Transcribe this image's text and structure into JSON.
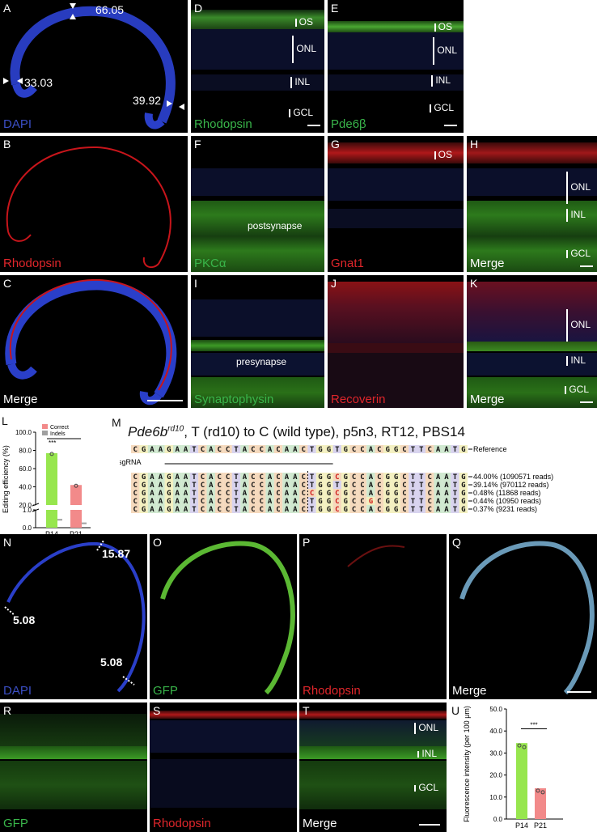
{
  "panels": {
    "A": {
      "letter": "A",
      "caption": "DAPI",
      "values": [
        "66.05",
        "33.03",
        "39.92"
      ]
    },
    "B": {
      "letter": "B",
      "caption": "Rhodopsin"
    },
    "C": {
      "letter": "C",
      "caption": "Merge"
    },
    "D": {
      "letter": "D",
      "caption": "Rhodopsin",
      "layers": [
        "OS",
        "ONL",
        "INL",
        "GCL"
      ]
    },
    "E": {
      "letter": "E",
      "caption": "Pde6β",
      "layers": [
        "OS",
        "ONL",
        "INL",
        "GCL"
      ]
    },
    "F": {
      "letter": "F",
      "caption": "PKCα",
      "annotation": "postsynapse"
    },
    "G": {
      "letter": "G",
      "caption": "Gnat1",
      "layers": [
        "OS"
      ]
    },
    "H": {
      "letter": "H",
      "caption": "Merge",
      "layers": [
        "ONL",
        "INL",
        "GCL"
      ]
    },
    "I": {
      "letter": "I",
      "caption": "Synaptophysin",
      "annotation": "presynapse"
    },
    "J": {
      "letter": "J",
      "caption": "Recoverin"
    },
    "K": {
      "letter": "K",
      "caption": "Merge",
      "layers": [
        "ONL",
        "INL",
        "GCL"
      ]
    },
    "N": {
      "letter": "N",
      "caption": "DAPI",
      "values": [
        "15.87",
        "5.08",
        "5.08"
      ]
    },
    "O": {
      "letter": "O",
      "caption": "GFP"
    },
    "P": {
      "letter": "P",
      "caption": "Rhodopsin"
    },
    "Q": {
      "letter": "Q",
      "caption": "Merge"
    },
    "R": {
      "letter": "R",
      "caption": "GFP"
    },
    "S": {
      "letter": "S",
      "caption": "Rhodopsin"
    },
    "T": {
      "letter": "T",
      "caption": "Merge",
      "layers": [
        "ONL",
        "INL",
        "GCL"
      ]
    }
  },
  "panel_L": {
    "letter": "L",
    "legend": [
      "Correct",
      "Indels"
    ],
    "significance": "***",
    "colors": {
      "correct": "#97e64e",
      "indels": "#a0a0a0",
      "p21": "#f28a8a"
    }
  },
  "chart_data": [
    {
      "type": "bar",
      "panel": "L",
      "categories": [
        "P14",
        "P21"
      ],
      "series": [
        {
          "name": "Correct",
          "values": [
            77,
            42
          ]
        },
        {
          "name": "Indels",
          "values": [
            0.4,
            0.2
          ]
        }
      ],
      "ylabel": "Editing efficiency (%)",
      "yticks": [
        "0.0",
        "1.0",
        "20.0",
        "40.0",
        "60.0",
        "80.0",
        "100.0"
      ],
      "axis_break": true,
      "significance": "***"
    },
    {
      "type": "bar",
      "panel": "U",
      "categories": [
        "P14",
        "P21"
      ],
      "values": [
        34.5,
        14.0
      ],
      "ylabel": "Fluorescence intensity (per 100 μm)",
      "yticks": [
        "0.0",
        "10.0",
        "20.0",
        "30.0",
        "40.0",
        "50.0"
      ],
      "ylim": [
        0,
        50
      ],
      "significance": "***"
    }
  ],
  "panel_M": {
    "letter": "M",
    "gene": "Pde6b",
    "superscript": "rd10",
    "title_rest": ", T (rd10) to C (wild type), p5n3, RT12, PBS14",
    "reference_label": "Reference",
    "sgrna_label": "sgRNA",
    "reference": "CGAAGAATCACCTACCACAACTGGTGCCACGGCTTCAATG",
    "reads": [
      {
        "seq": "CGAAGAATCACCTACCACAACTGGCGCCACGGCTTCAATG",
        "label": "44.00% (1090571 reads)"
      },
      {
        "seq": "CGAAGAATCACCTACCACAACTGGTGCCACGGCTTCAATG",
        "label": "39.14% (970112 reads)"
      },
      {
        "seq": "CGAAGAATCACCTACCACAACCGGCGCCACGGCTTCAATG",
        "label": "0.48% (11868 reads)"
      },
      {
        "seq": "CGAAGAATCACCTACCACAACTGGCGCCGCGGCTTCAATG",
        "label": "0.44% (10950 reads)"
      },
      {
        "seq": "CGAAGAATCACCTACCACAACTGGCGCCACGGCTTCAATG",
        "label": "0.37% (9231 reads)"
      }
    ],
    "base_colors": {
      "A": "#cfe8cf",
      "C": "#f5d9bd",
      "G": "#f3f0c0",
      "T": "#d8d3ee"
    }
  }
}
